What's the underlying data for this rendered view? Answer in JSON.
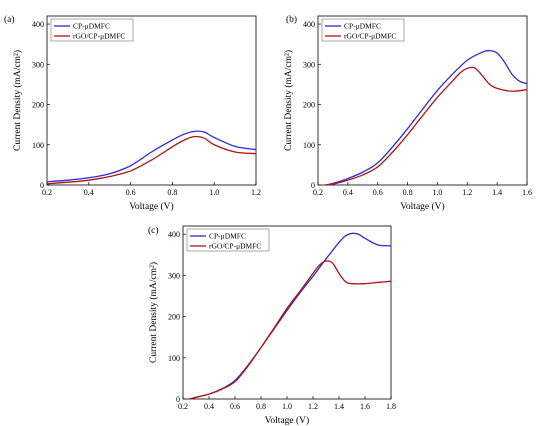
{
  "colors": {
    "blue": "#2b2bd9",
    "red": "#b11212"
  },
  "chart_data": [
    {
      "type": "line",
      "panel_label": "(a)",
      "xlabel": "Voltage (V)",
      "ylabel": "Current Density (mA/cm²)",
      "xlim": [
        0.2,
        1.2
      ],
      "ylim": [
        0,
        420
      ],
      "xticks": [
        "0.2",
        "0.4",
        "0.6",
        "0.8",
        "1.0",
        "1.2"
      ],
      "yticks": [
        "0",
        "100",
        "200",
        "300",
        "400"
      ],
      "legend_position": "top-left",
      "series": [
        {
          "name": "CP-μDMFC",
          "color": "blue",
          "x": [
            0.2,
            0.3,
            0.4,
            0.5,
            0.6,
            0.7,
            0.8,
            0.85,
            0.9,
            0.95,
            1.0,
            1.1,
            1.2
          ],
          "y": [
            8,
            12,
            18,
            28,
            48,
            82,
            112,
            125,
            133,
            132,
            118,
            96,
            88
          ]
        },
        {
          "name": "rGO/CP-μDMFC",
          "color": "red",
          "x": [
            0.2,
            0.3,
            0.4,
            0.5,
            0.6,
            0.7,
            0.8,
            0.85,
            0.9,
            0.95,
            1.0,
            1.1,
            1.2
          ],
          "y": [
            3,
            7,
            12,
            21,
            35,
            62,
            95,
            110,
            120,
            117,
            100,
            82,
            78
          ]
        }
      ]
    },
    {
      "type": "line",
      "panel_label": "(b)",
      "xlabel": "Voltage (V)",
      "ylabel": "Current Density (mA/cm²)",
      "xlim": [
        0.2,
        1.6
      ],
      "ylim": [
        0,
        420
      ],
      "xticks": [
        "0.2",
        "0.4",
        "0.6",
        "0.8",
        "1.0",
        "1.2",
        "1.4",
        "1.6"
      ],
      "yticks": [
        "0",
        "100",
        "200",
        "300",
        "400"
      ],
      "legend_position": "top-left",
      "series": [
        {
          "name": "CP-μDMFC",
          "color": "blue",
          "x": [
            0.25,
            0.3,
            0.4,
            0.5,
            0.6,
            0.7,
            0.8,
            0.9,
            1.0,
            1.1,
            1.2,
            1.3,
            1.35,
            1.4,
            1.45,
            1.5,
            1.55,
            1.6
          ],
          "y": [
            0,
            4,
            16,
            32,
            55,
            95,
            140,
            188,
            235,
            275,
            310,
            330,
            334,
            328,
            305,
            275,
            258,
            252
          ]
        },
        {
          "name": "rGO/CP-μDMFC",
          "color": "red",
          "x": [
            0.25,
            0.3,
            0.4,
            0.5,
            0.6,
            0.7,
            0.8,
            0.9,
            1.0,
            1.1,
            1.15,
            1.2,
            1.25,
            1.3,
            1.35,
            1.4,
            1.5,
            1.6
          ],
          "y": [
            0,
            2,
            12,
            25,
            45,
            82,
            125,
            172,
            218,
            258,
            278,
            290,
            291,
            272,
            250,
            240,
            233,
            237
          ]
        }
      ]
    },
    {
      "type": "line",
      "panel_label": "(c)",
      "xlabel": "Voltage (V)",
      "ylabel": "Current Density (mA/cm²)",
      "xlim": [
        0.2,
        1.8
      ],
      "ylim": [
        0,
        420
      ],
      "xticks": [
        "0.2",
        "0.4",
        "0.6",
        "0.8",
        "1.0",
        "1.2",
        "1.4",
        "1.6",
        "1.8"
      ],
      "yticks": [
        "0",
        "100",
        "200",
        "300",
        "400"
      ],
      "legend_position": "top-left",
      "series": [
        {
          "name": "CP-μDMFC",
          "color": "blue",
          "x": [
            0.25,
            0.3,
            0.4,
            0.5,
            0.6,
            0.7,
            0.8,
            0.9,
            1.0,
            1.1,
            1.2,
            1.3,
            1.4,
            1.45,
            1.5,
            1.55,
            1.6,
            1.7,
            1.8
          ],
          "y": [
            0,
            4,
            12,
            25,
            45,
            82,
            125,
            170,
            215,
            258,
            298,
            340,
            380,
            396,
            402,
            400,
            390,
            374,
            372
          ]
        },
        {
          "name": "rGO/CP-μDMFC",
          "color": "red",
          "x": [
            0.25,
            0.3,
            0.4,
            0.5,
            0.6,
            0.7,
            0.8,
            0.9,
            1.0,
            1.1,
            1.2,
            1.25,
            1.3,
            1.35,
            1.4,
            1.45,
            1.5,
            1.6,
            1.7,
            1.8
          ],
          "y": [
            0,
            4,
            12,
            24,
            42,
            80,
            125,
            172,
            220,
            262,
            305,
            325,
            335,
            330,
            305,
            285,
            280,
            280,
            283,
            286
          ]
        }
      ]
    }
  ]
}
